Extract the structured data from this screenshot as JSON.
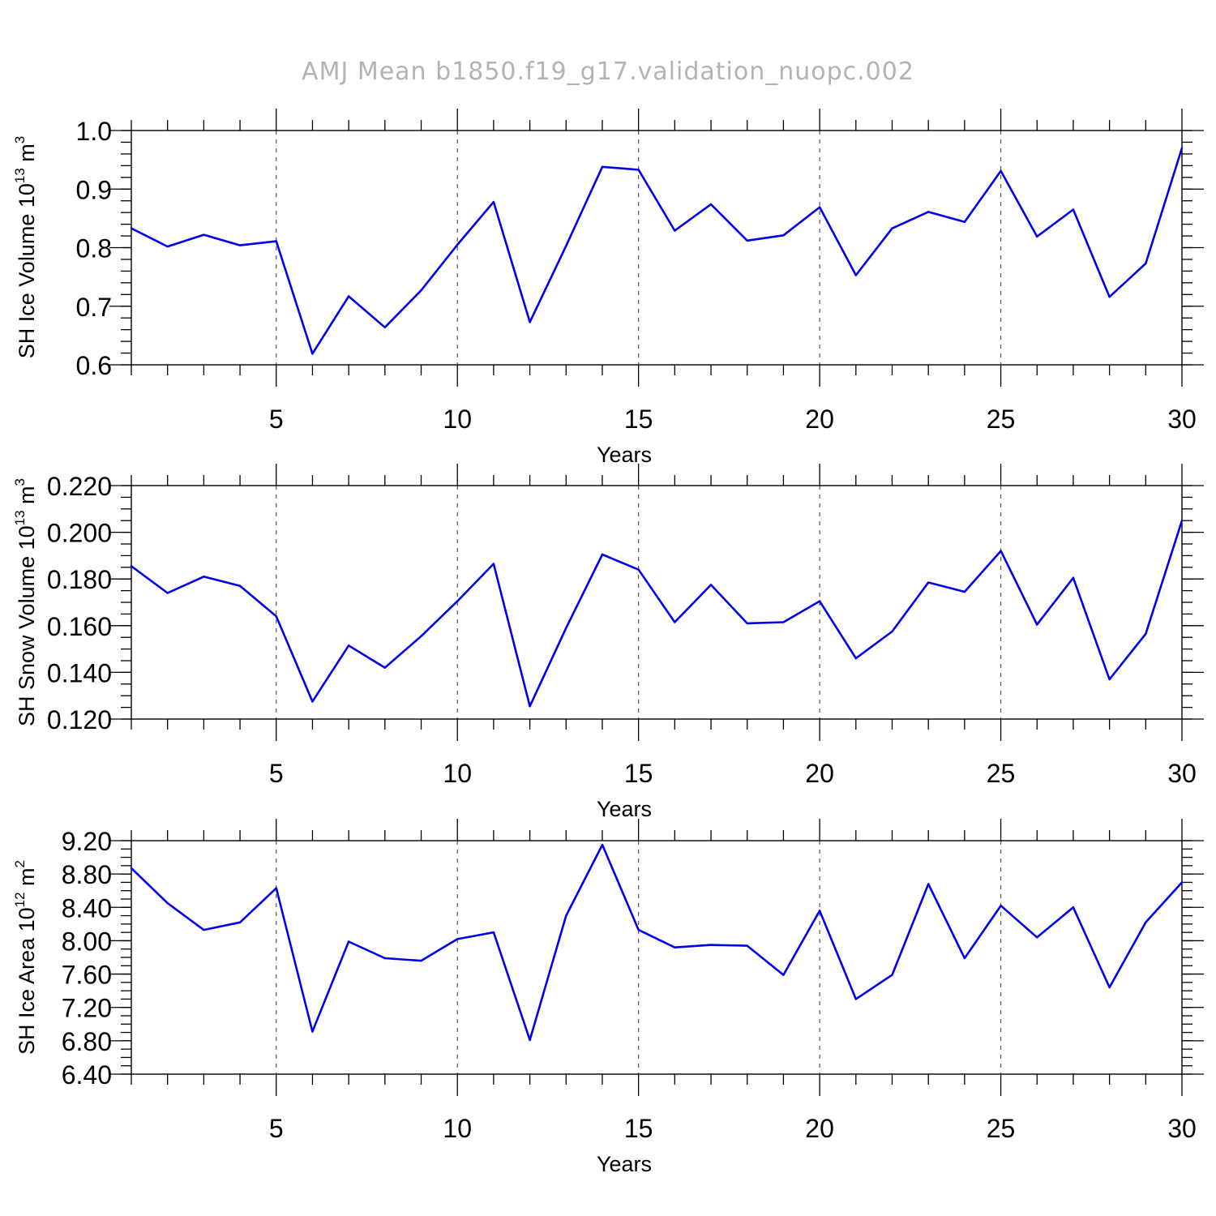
{
  "title": "AMJ Mean b1850.f19_g17.validation_nuopc.002",
  "chart_data": [
    {
      "type": "line",
      "ylabel": "SH Ice Volume 10",
      "ylabel_sup": "13",
      "ylabel_unit": "m",
      "ylabel_unit_sup": "3",
      "xlabel": "Years",
      "xlim": [
        1,
        30
      ],
      "ylim": [
        0.6,
        1.0
      ],
      "x_ticks": [
        5,
        10,
        15,
        20,
        25,
        30
      ],
      "x_tick_labels": [
        "5",
        "10",
        "15",
        "20",
        "25",
        "30"
      ],
      "y_ticks": [
        0.6,
        0.7,
        0.8,
        0.9,
        1.0
      ],
      "y_tick_labels": [
        "0.6",
        "0.7",
        "0.8",
        "0.9",
        "1.0"
      ],
      "y_minor_step": 0.02,
      "grid": "vertical dashed at major x ticks",
      "series_color": "#0000ee",
      "x": [
        1,
        2,
        3,
        4,
        5,
        6,
        7,
        8,
        9,
        10,
        11,
        12,
        13,
        14,
        15,
        16,
        17,
        18,
        19,
        20,
        21,
        22,
        23,
        24,
        25,
        26,
        27,
        28,
        29,
        30
      ],
      "values": [
        0.833,
        0.802,
        0.822,
        0.804,
        0.811,
        0.619,
        0.717,
        0.664,
        0.727,
        0.805,
        0.878,
        0.673,
        0.803,
        0.938,
        0.933,
        0.829,
        0.874,
        0.812,
        0.821,
        0.869,
        0.753,
        0.833,
        0.861,
        0.844,
        0.931,
        0.819,
        0.865,
        0.716,
        0.773,
        0.97
      ]
    },
    {
      "type": "line",
      "ylabel": "SH Snow Volume 10",
      "ylabel_sup": "13",
      "ylabel_unit": "m",
      "ylabel_unit_sup": "3",
      "xlabel": "Years",
      "xlim": [
        1,
        30
      ],
      "ylim": [
        0.12,
        0.22
      ],
      "x_ticks": [
        5,
        10,
        15,
        20,
        25,
        30
      ],
      "x_tick_labels": [
        "5",
        "10",
        "15",
        "20",
        "25",
        "30"
      ],
      "y_ticks": [
        0.12,
        0.14,
        0.16,
        0.18,
        0.2,
        0.22
      ],
      "y_tick_labels": [
        "0.120",
        "0.140",
        "0.160",
        "0.180",
        "0.200",
        "0.220"
      ],
      "y_minor_step": 0.005,
      "grid": "vertical dashed at major x ticks",
      "series_color": "#0000ee",
      "x": [
        1,
        2,
        3,
        4,
        5,
        6,
        7,
        8,
        9,
        10,
        11,
        12,
        13,
        14,
        15,
        16,
        17,
        18,
        19,
        20,
        21,
        22,
        23,
        24,
        25,
        26,
        27,
        28,
        29,
        30
      ],
      "values": [
        0.1855,
        0.174,
        0.181,
        0.177,
        0.164,
        0.1275,
        0.1515,
        0.142,
        0.1555,
        0.1705,
        0.1865,
        0.1255,
        0.159,
        0.1905,
        0.184,
        0.1615,
        0.1775,
        0.161,
        0.1615,
        0.1705,
        0.146,
        0.1575,
        0.1785,
        0.1745,
        0.192,
        0.1605,
        0.1805,
        0.137,
        0.1565,
        0.205
      ]
    },
    {
      "type": "line",
      "ylabel": "SH Ice Area 10",
      "ylabel_sup": "12",
      "ylabel_unit": "m",
      "ylabel_unit_sup": "2",
      "xlabel": "Years",
      "xlim": [
        1,
        30
      ],
      "ylim": [
        6.4,
        9.2
      ],
      "x_ticks": [
        5,
        10,
        15,
        20,
        25,
        30
      ],
      "x_tick_labels": [
        "5",
        "10",
        "15",
        "20",
        "25",
        "30"
      ],
      "y_ticks": [
        6.4,
        6.8,
        7.2,
        7.6,
        8.0,
        8.4,
        8.8,
        9.2
      ],
      "y_tick_labels": [
        "6.40",
        "6.80",
        "7.20",
        "7.60",
        "8.00",
        "8.40",
        "8.80",
        "9.20"
      ],
      "y_minor_step": 0.1,
      "grid": "vertical dashed at major x ticks",
      "series_color": "#0000ee",
      "x": [
        1,
        2,
        3,
        4,
        5,
        6,
        7,
        8,
        9,
        10,
        11,
        12,
        13,
        14,
        15,
        16,
        17,
        18,
        19,
        20,
        21,
        22,
        23,
        24,
        25,
        26,
        27,
        28,
        29,
        30
      ],
      "values": [
        8.87,
        8.45,
        8.13,
        8.22,
        8.63,
        6.91,
        7.99,
        7.79,
        7.76,
        8.02,
        8.1,
        6.81,
        8.3,
        9.15,
        8.13,
        7.92,
        7.95,
        7.94,
        7.59,
        8.36,
        7.3,
        7.59,
        8.68,
        7.79,
        8.42,
        8.04,
        8.4,
        7.44,
        8.22,
        8.7
      ]
    }
  ]
}
